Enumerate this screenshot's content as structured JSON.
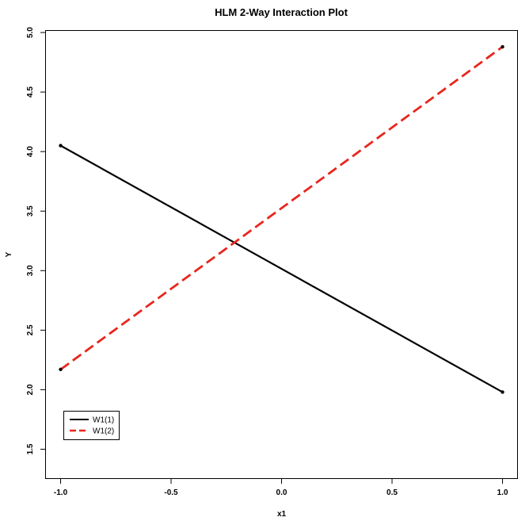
{
  "chart_data": {
    "type": "line",
    "title": "HLM 2-Way Interaction Plot",
    "xlabel": "x1",
    "ylabel": "Y",
    "xlim": [
      -1.07,
      1.07
    ],
    "ylim": [
      1.25,
      5.02
    ],
    "xticks": [
      -1.0,
      -0.5,
      0.0,
      0.5,
      1.0
    ],
    "xtick_labels": [
      "-1.0",
      "-0.5",
      "0.0",
      "0.5",
      "1.0"
    ],
    "yticks": [
      1.5,
      2.0,
      2.5,
      3.0,
      3.5,
      4.0,
      4.5,
      5.0
    ],
    "ytick_labels": [
      "1.5",
      "2.0",
      "2.5",
      "3.0",
      "3.5",
      "4.0",
      "4.5",
      "5.0"
    ],
    "grid": false,
    "legend_position": "bottom-left",
    "series": [
      {
        "name": "W1(1)",
        "x": [
          -1,
          1
        ],
        "y": [
          4.05,
          1.98
        ],
        "color": "#000000",
        "dash": "solid"
      },
      {
        "name": "W1(2)",
        "x": [
          -1,
          1
        ],
        "y": [
          2.17,
          4.88
        ],
        "color": "#e8261d",
        "dash": "dashed"
      }
    ]
  }
}
